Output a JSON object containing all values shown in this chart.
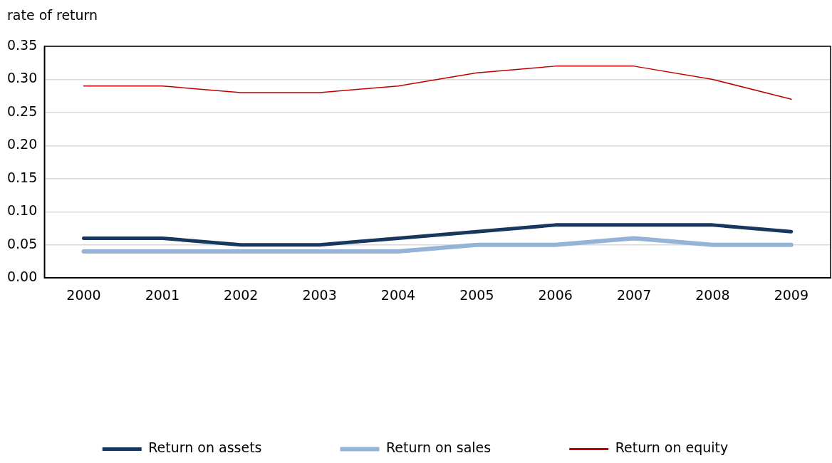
{
  "chart_data": {
    "type": "line",
    "ylabel": "rate of return",
    "categories": [
      "2000",
      "2001",
      "2002",
      "2003",
      "2004",
      "2005",
      "2006",
      "2007",
      "2008",
      "2009"
    ],
    "series": [
      {
        "name": "Return on assets",
        "color": "#17375e",
        "values": [
          0.06,
          0.06,
          0.05,
          0.05,
          0.06,
          0.07,
          0.08,
          0.08,
          0.08,
          0.07
        ]
      },
      {
        "name": "Return on sales",
        "color": "#95b3d7",
        "values": [
          0.04,
          0.04,
          0.04,
          0.04,
          0.04,
          0.05,
          0.05,
          0.06,
          0.05,
          0.05
        ]
      },
      {
        "name": "Return on equity",
        "color": "#c00000",
        "values": [
          0.29,
          0.29,
          0.28,
          0.28,
          0.29,
          0.31,
          0.32,
          0.32,
          0.3,
          0.27
        ]
      }
    ],
    "ylim": [
      0,
      0.35
    ],
    "yticks": [
      {
        "value": 0,
        "label": "0.00"
      },
      {
        "value": 0.05,
        "label": "0.05"
      },
      {
        "value": 0.1,
        "label": "0.10"
      },
      {
        "value": 0.15,
        "label": "0.15"
      },
      {
        "value": 0.2,
        "label": "0.20"
      },
      {
        "value": 0.25,
        "label": "0.25"
      },
      {
        "value": 0.3,
        "label": "0.30"
      },
      {
        "value": 0.35,
        "label": "0.35"
      }
    ],
    "grid": "y",
    "legend": "bottom",
    "marker": "none",
    "line_style": "solid"
  }
}
